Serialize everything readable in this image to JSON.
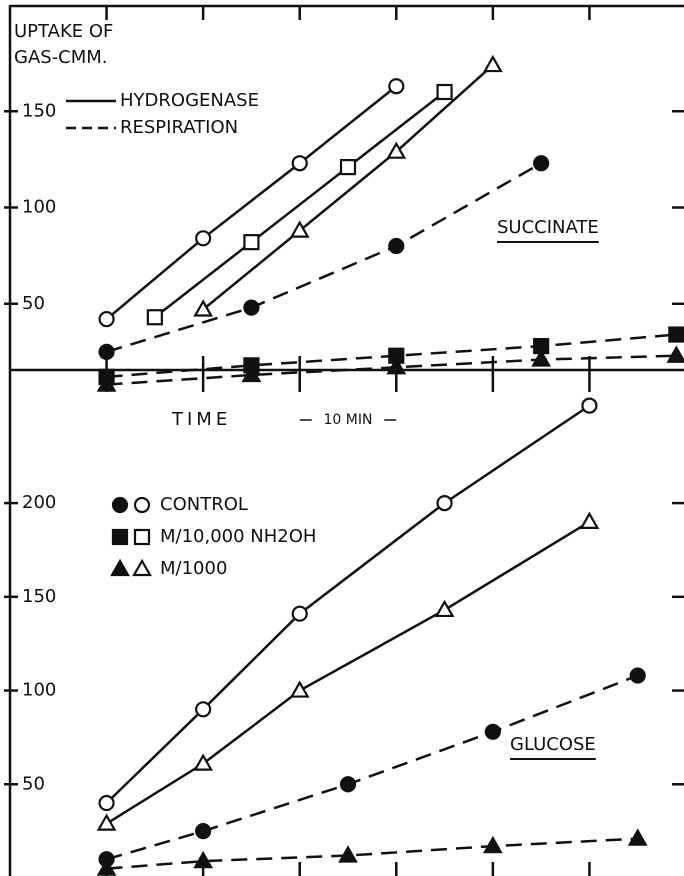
{
  "chart_data": [
    {
      "type": "line",
      "ylabel": [
        "UPTAKE OF",
        "GAS-CMM."
      ],
      "line_styles": [
        {
          "label": "HYDROGENASE",
          "dash": false
        },
        {
          "label": "RESPIRATION",
          "dash": true
        }
      ],
      "annotation": "SUCCINATE",
      "xlabel": "TIME",
      "scale_label": "10 MIN",
      "scale_span": [
        20,
        30
      ],
      "xlim": [
        -10,
        60
      ],
      "xticks": [
        0,
        10,
        20,
        30,
        40,
        50
      ],
      "ylim": [
        0,
        200
      ],
      "yticks": [
        50,
        100,
        150
      ],
      "series": [
        {
          "marker": "circle",
          "filled": false,
          "dash": false,
          "x": [
            0,
            10,
            20,
            30
          ],
          "values": [
            42,
            84,
            123,
            163
          ]
        },
        {
          "marker": "square",
          "filled": false,
          "dash": false,
          "x": [
            5,
            15,
            25,
            35
          ],
          "values": [
            43,
            82,
            121,
            160
          ]
        },
        {
          "marker": "triangle",
          "filled": false,
          "dash": false,
          "x": [
            10,
            20,
            30,
            40
          ],
          "values": [
            47,
            88,
            129,
            174
          ]
        },
        {
          "marker": "circle",
          "filled": true,
          "dash": true,
          "x": [
            0,
            15,
            30,
            45
          ],
          "values": [
            25,
            48,
            80,
            123
          ]
        },
        {
          "marker": "square",
          "filled": true,
          "dash": true,
          "x": [
            0,
            15,
            30,
            45,
            59
          ],
          "values": [
            12,
            18,
            23,
            28,
            34
          ]
        },
        {
          "marker": "triangle",
          "filled": true,
          "dash": true,
          "x": [
            0,
            15,
            30,
            45,
            59
          ],
          "values": [
            8,
            13,
            17,
            21,
            23
          ]
        }
      ]
    },
    {
      "type": "line",
      "legend": [
        {
          "label": "CONTROL",
          "marker": "circle"
        },
        {
          "label": "M/10,000 NH2OH",
          "marker": "square"
        },
        {
          "label": "M/1000",
          "marker": "triangle"
        }
      ],
      "annotation": "GLUCOSE",
      "xlim": [
        -10,
        60
      ],
      "xticks": [
        0,
        10,
        20,
        30,
        40,
        50
      ],
      "ylim": [
        0,
        255
      ],
      "yticks": [
        50,
        100,
        150,
        200
      ],
      "series": [
        {
          "marker": "circle",
          "filled": false,
          "dash": false,
          "x": [
            0,
            10,
            20,
            35,
            50
          ],
          "values": [
            40,
            90,
            141,
            200,
            252
          ]
        },
        {
          "marker": "triangle",
          "filled": false,
          "dash": false,
          "x": [
            0,
            10,
            20,
            35,
            50
          ],
          "values": [
            29,
            61,
            100,
            143,
            190
          ]
        },
        {
          "marker": "circle",
          "filled": true,
          "dash": true,
          "x": [
            0,
            10,
            25,
            40,
            55
          ],
          "values": [
            10,
            25,
            50,
            78,
            108
          ]
        },
        {
          "marker": "triangle",
          "filled": true,
          "dash": true,
          "x": [
            0,
            10,
            25,
            40,
            55
          ],
          "values": [
            5,
            9,
            12,
            17,
            21
          ]
        }
      ]
    }
  ]
}
